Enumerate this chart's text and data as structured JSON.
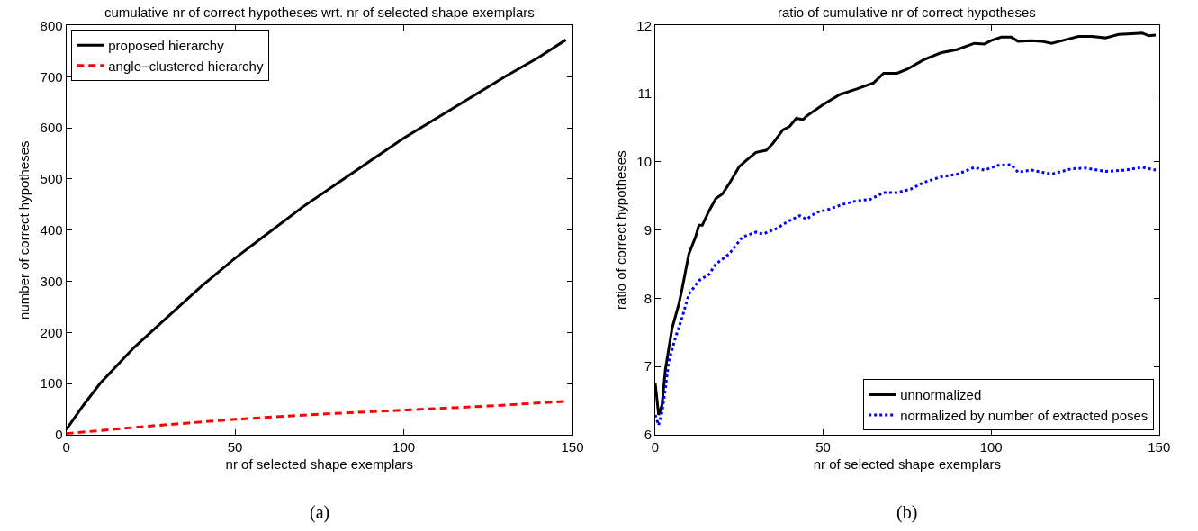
{
  "chart_data": [
    {
      "type": "line",
      "title": "cumulative nr of correct hypotheses wrt. nr of selected shape exemplars",
      "xlabel": "nr of selected shape exemplars",
      "ylabel": "number of correct hypotheses",
      "xlim": [
        0,
        150
      ],
      "xticks": [
        0,
        50,
        100,
        150
      ],
      "ylim": [
        0,
        800
      ],
      "yticks": [
        0,
        100,
        200,
        300,
        400,
        500,
        600,
        700,
        800
      ],
      "grid": false,
      "legend": "top left",
      "marker": "none",
      "annotations": [
        "(a)"
      ],
      "series": [
        {
          "name": "proposed hierarchy",
          "color": "#000000",
          "line_style": "solid",
          "x": [
            0,
            5,
            10,
            20,
            30,
            40,
            50,
            60,
            70,
            80,
            90,
            100,
            110,
            120,
            130,
            140,
            148
          ],
          "values": [
            10,
            57,
            100,
            170,
            230,
            290,
            345,
            395,
            445,
            490,
            535,
            580,
            620,
            660,
            700,
            738,
            772
          ]
        },
        {
          "name": "angle−clustered hierarchy",
          "color": "#ff0000",
          "line_style": "dashed",
          "x": [
            0,
            25,
            50,
            75,
            100,
            125,
            148
          ],
          "values": [
            2,
            17,
            30,
            40,
            48,
            56,
            65
          ]
        }
      ]
    },
    {
      "type": "line",
      "title": "ratio of cumulative nr of correct hypotheses",
      "xlabel": "nr of selected shape exemplars",
      "ylabel": "ratio of correct hypotheses",
      "xlim": [
        0,
        150
      ],
      "xticks": [
        0,
        50,
        100,
        150
      ],
      "ylim": [
        6,
        12
      ],
      "yticks": [
        6,
        7,
        8,
        9,
        10,
        11,
        12
      ],
      "grid": false,
      "legend": "bottom right",
      "marker": "none",
      "annotations": [
        "(b)"
      ],
      "series": [
        {
          "name": "unnormalized",
          "color": "#000000",
          "line_style": "solid",
          "x": [
            0,
            1,
            2,
            3,
            5,
            7,
            8,
            10,
            12,
            13,
            14,
            16,
            18,
            20,
            22,
            25,
            28,
            30,
            33,
            35,
            38,
            40,
            42,
            44,
            45,
            47,
            50,
            55,
            60,
            65,
            68,
            72,
            75,
            80,
            85,
            90,
            95,
            98,
            100,
            103,
            106,
            108,
            112,
            115,
            118,
            122,
            126,
            130,
            134,
            138,
            142,
            145,
            147,
            149
          ],
          "values": [
            6.75,
            6.29,
            6.43,
            6.95,
            7.56,
            7.91,
            8.14,
            8.65,
            8.9,
            9.07,
            9.07,
            9.28,
            9.46,
            9.53,
            9.68,
            9.93,
            10.06,
            10.14,
            10.17,
            10.27,
            10.47,
            10.52,
            10.64,
            10.62,
            10.67,
            10.74,
            10.84,
            10.99,
            11.07,
            11.16,
            11.3,
            11.3,
            11.36,
            11.5,
            11.6,
            11.65,
            11.74,
            11.73,
            11.78,
            11.83,
            11.83,
            11.77,
            11.78,
            11.77,
            11.74,
            11.79,
            11.84,
            11.84,
            11.82,
            11.87,
            11.88,
            11.89,
            11.85,
            11.86
          ]
        },
        {
          "name": "normalized by number of extracted poses",
          "color": "#0000ff",
          "line_style": "dotted",
          "x": [
            0,
            1,
            2,
            3,
            4,
            6,
            8,
            10,
            13,
            16,
            18,
            22,
            26,
            30,
            32,
            36,
            40,
            43,
            45,
            48,
            52,
            56,
            60,
            64,
            68,
            72,
            76,
            80,
            85,
            90,
            95,
            98,
            102,
            106,
            108,
            112,
            118,
            124,
            128,
            134,
            140,
            145,
            149
          ],
          "values": [
            6.29,
            6.14,
            6.33,
            6.67,
            7.07,
            7.42,
            7.72,
            8.06,
            8.26,
            8.35,
            8.5,
            8.65,
            8.9,
            8.97,
            8.94,
            9.02,
            9.14,
            9.21,
            9.16,
            9.26,
            9.31,
            9.38,
            9.43,
            9.45,
            9.55,
            9.55,
            9.6,
            9.7,
            9.78,
            9.82,
            9.92,
            9.88,
            9.95,
            9.96,
            9.85,
            9.88,
            9.82,
            9.9,
            9.91,
            9.86,
            9.88,
            9.92,
            9.88
          ]
        }
      ]
    }
  ]
}
